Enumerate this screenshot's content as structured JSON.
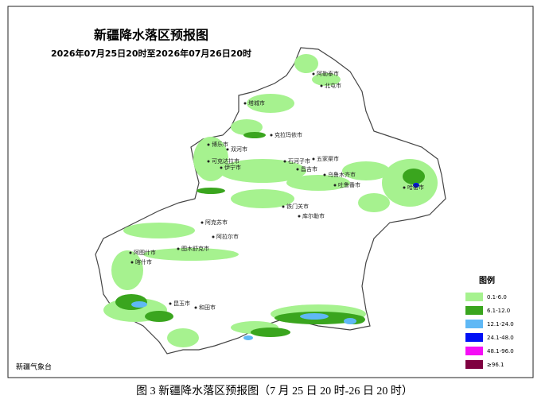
{
  "header": {
    "title": "新疆降水落区预报图",
    "subtitle": "2026年07月25日20时至2026年07月26日20时"
  },
  "cities": [
    "阿勒泰市",
    "北屯市",
    "塔城市",
    "克拉玛依市",
    "博乐市",
    "双河市",
    "可克达拉市",
    "伊宁市",
    "石河子市",
    "五家渠市",
    "昌吉市",
    "乌鲁木齐市",
    "吐鲁番市",
    "哈密市",
    "铁门关市",
    "库尔勒市",
    "阿克苏市",
    "阿拉尔市",
    "图木舒克市",
    "阿图什市",
    "喀什市",
    "昆玉市",
    "和田市"
  ],
  "legend": {
    "title": "图例",
    "items": [
      {
        "label": "0.1-6.0",
        "color": "#a6f28f"
      },
      {
        "label": "6.1-12.0",
        "color": "#3aa51e"
      },
      {
        "label": "12.1-24.0",
        "color": "#5fb8f5"
      },
      {
        "label": "24.1-48.0",
        "color": "#0010f5"
      },
      {
        "label": "48.1-96.0",
        "color": "#f50ef5"
      },
      {
        "label": "≥96.1",
        "color": "#7f0040"
      }
    ]
  },
  "source": "新疆气象台",
  "caption": "图 3 新疆降水落区预报图（7 月 25 日 20 时-26 日 20 时）"
}
